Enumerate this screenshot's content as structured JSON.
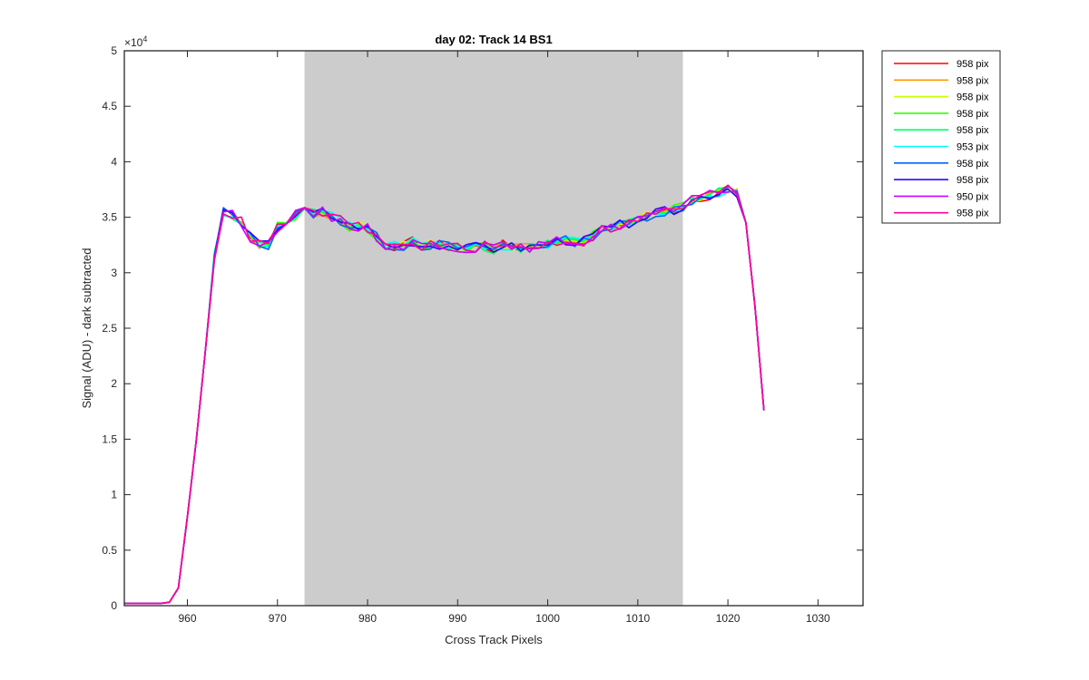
{
  "chart_data": {
    "type": "line",
    "title": "day 02: Track 14  BS1",
    "xlabel": "Cross Track Pixels",
    "ylabel": "Signal (ADU) - dark subtracted",
    "y_exponent_label": "×10",
    "y_exponent_power": "4",
    "xlim": [
      953,
      1035
    ],
    "ylim": [
      0,
      50000
    ],
    "xticks": [
      960,
      970,
      980,
      990,
      1000,
      1010,
      1020,
      1030
    ],
    "yticks": [
      0,
      0.5,
      1,
      1.5,
      2,
      2.5,
      3,
      3.5,
      4,
      4.5,
      5
    ],
    "shaded_region": {
      "x_start": 973,
      "x_end": 1015,
      "color": "#cccccc"
    },
    "legend_position": "outside-right-top",
    "x": [
      953,
      954,
      955,
      956,
      957,
      958,
      959,
      960,
      961,
      962,
      963,
      964,
      965,
      966,
      967,
      968,
      969,
      970,
      971,
      972,
      973,
      974,
      975,
      976,
      977,
      978,
      979,
      980,
      981,
      982,
      983,
      984,
      985,
      986,
      987,
      988,
      989,
      990,
      991,
      992,
      993,
      994,
      995,
      996,
      997,
      998,
      999,
      1000,
      1001,
      1002,
      1003,
      1004,
      1005,
      1006,
      1007,
      1008,
      1009,
      1010,
      1011,
      1012,
      1013,
      1014,
      1015,
      1016,
      1017,
      1018,
      1019,
      1020,
      1021,
      1022,
      1023,
      1024
    ],
    "base_values": [
      200,
      200,
      200,
      200,
      200,
      300,
      1600,
      8000,
      15000,
      23000,
      31500,
      35500,
      35200,
      34600,
      33200,
      32600,
      32500,
      34100,
      34600,
      35200,
      35500,
      35300,
      35500,
      35000,
      34700,
      34200,
      34200,
      34000,
      33200,
      32500,
      32400,
      32400,
      32800,
      32400,
      32500,
      32500,
      32400,
      32300,
      32100,
      32300,
      32400,
      32100,
      32500,
      32300,
      32200,
      32300,
      32400,
      32600,
      32800,
      32900,
      32800,
      32800,
      33300,
      33900,
      34000,
      34300,
      34500,
      34900,
      35100,
      35300,
      35500,
      35700,
      35900,
      36500,
      36800,
      37000,
      37300,
      37600,
      37200,
      34500,
      27000,
      17600
    ],
    "series": [
      {
        "label": "958 pix",
        "color": "#ff0000"
      },
      {
        "label": "958 pix",
        "color": "#ff9900"
      },
      {
        "label": "958 pix",
        "color": "#ccff00"
      },
      {
        "label": "958 pix",
        "color": "#33ff00"
      },
      {
        "label": "958 pix",
        "color": "#00ff66"
      },
      {
        "label": "953 pix",
        "color": "#00ffff"
      },
      {
        "label": "958 pix",
        "color": "#0066ff"
      },
      {
        "label": "958 pix",
        "color": "#3300ff"
      },
      {
        "label": "950 pix",
        "color": "#cc00ff"
      },
      {
        "label": "958 pix",
        "color": "#ff0099"
      }
    ]
  }
}
